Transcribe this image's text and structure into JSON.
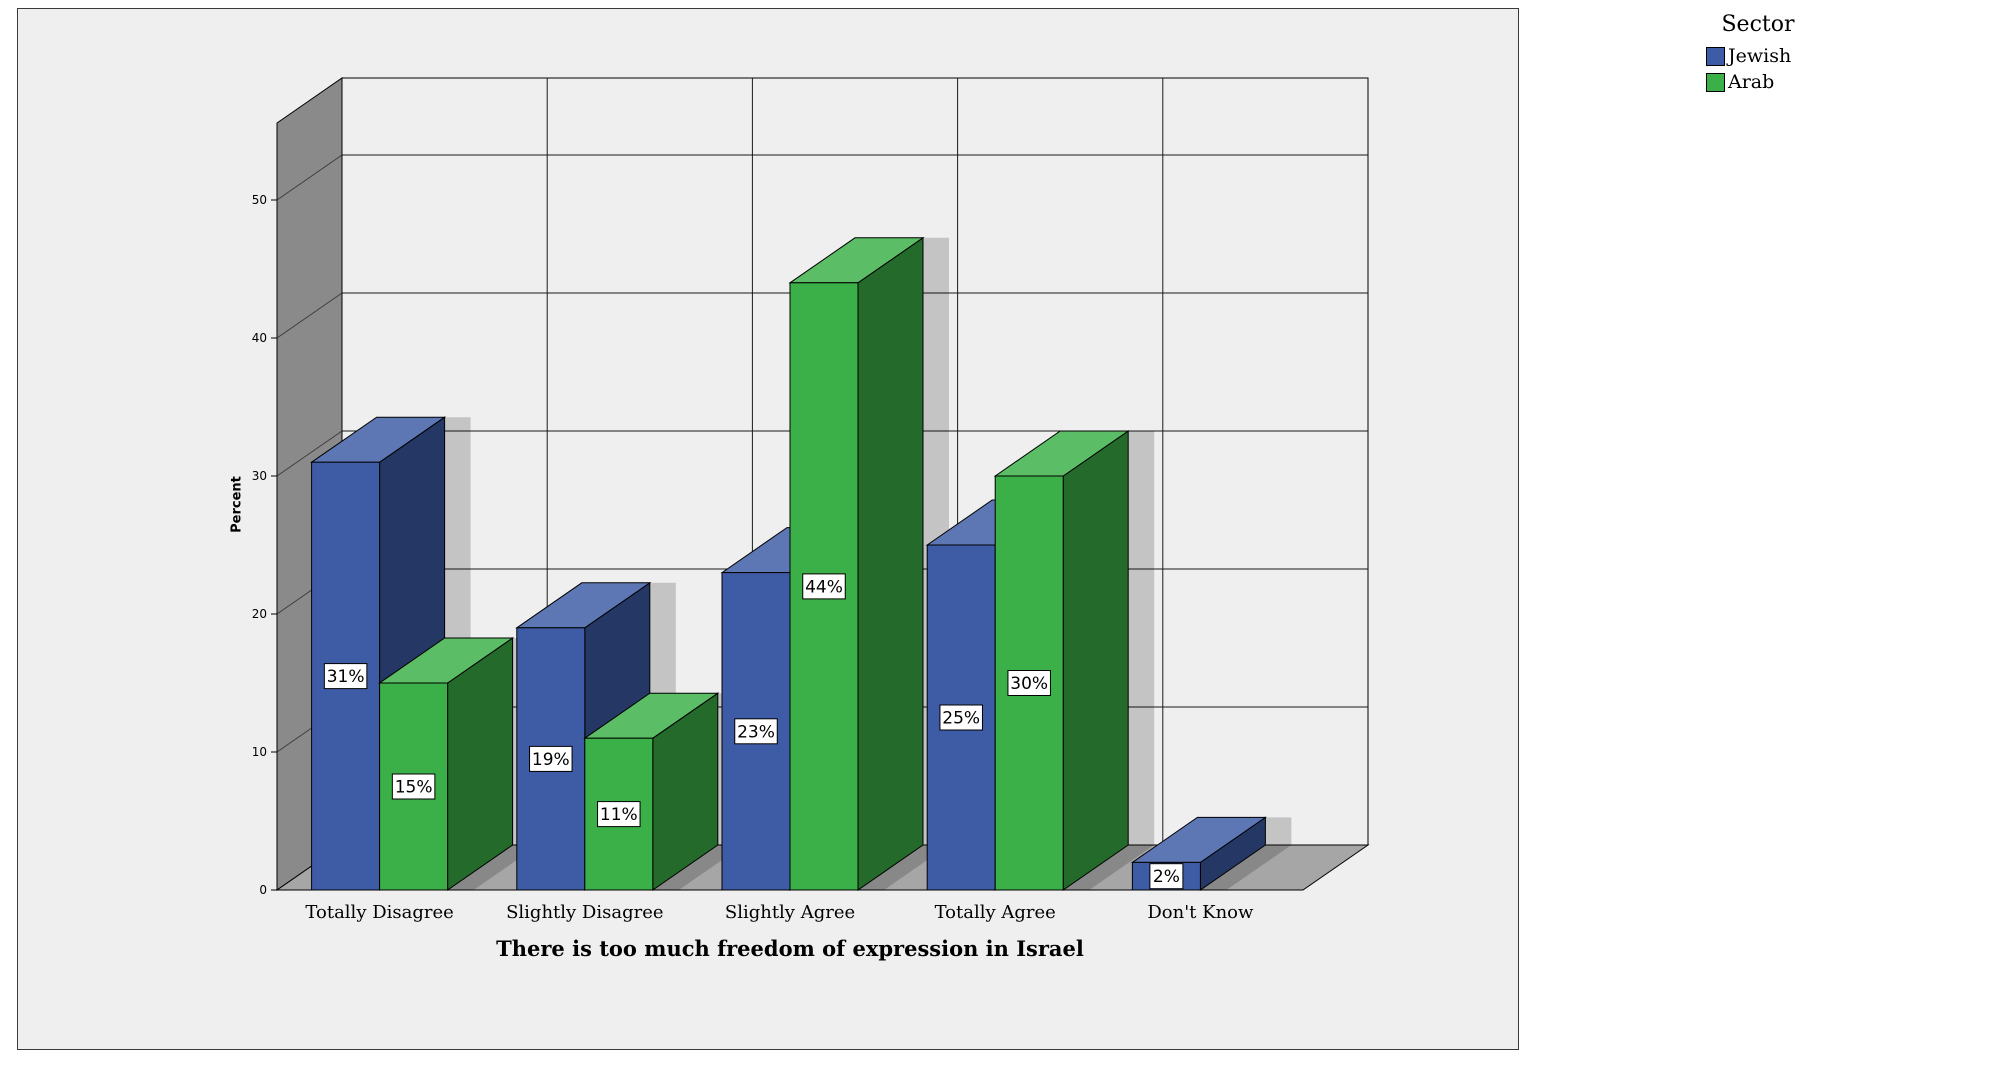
{
  "panel": {
    "background": "#efefef",
    "border_color": "#3a3a3a"
  },
  "legend": {
    "title": "Sector",
    "entries": [
      {
        "label": "Jewish",
        "color": "#3e5ca6"
      },
      {
        "label": "Arab",
        "color": "#3cb048"
      }
    ]
  },
  "chart_data": {
    "type": "bar",
    "projection": "3d",
    "title": "",
    "xlabel": "There is too much freedom of expression in Israel",
    "ylabel": "Percent",
    "categories": [
      "Totally Disagree",
      "Slightly Disagree",
      "Slightly Agree",
      "Totally Agree",
      "Don't Know"
    ],
    "series": [
      {
        "name": "Jewish",
        "color": "#3e5ca6",
        "values": [
          31,
          19,
          23,
          25,
          2
        ]
      },
      {
        "name": "Arab",
        "color": "#3cb048",
        "values": [
          15,
          11,
          44,
          30,
          null
        ]
      }
    ],
    "value_labels": [
      [
        "31%",
        "19%",
        "23%",
        "25%",
        "2%"
      ],
      [
        "15%",
        "11%",
        "44%",
        "30%",
        null
      ]
    ],
    "yticks": [
      0,
      10,
      20,
      30,
      40,
      50
    ],
    "ylim": [
      0,
      55
    ],
    "grid": true,
    "legend_position": "outside-top-right",
    "wall_color": "#8a8a8a",
    "floor_color": "#a6a6a6",
    "back_wall_color": "#efefef"
  }
}
